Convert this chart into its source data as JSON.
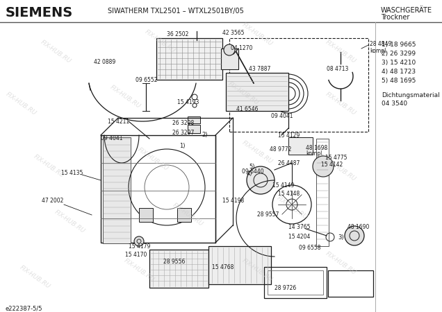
{
  "title_left": "SIEMENS",
  "title_center": "SIWATHERM TXL2501 – WTXL2501BY/05",
  "title_right_line1": "WASCHGERÄTE",
  "title_right_line2": "Trockner",
  "parts_list": [
    "1) 18 9665",
    "2) 26 3299",
    "3) 15 4210",
    "4) 48 1723",
    "5) 48 1695"
  ],
  "dichtung_label": "Dichtungsmaterial",
  "dichtung_number": "04 3540",
  "footer": "e222387-5/5",
  "watermark": "FIX-HUB.RU",
  "bg_color": "#ffffff",
  "draw_color": "#1a1a1a",
  "text_color": "#1a1a1a",
  "wm_color": "#cccccc",
  "sep_color": "#888888"
}
